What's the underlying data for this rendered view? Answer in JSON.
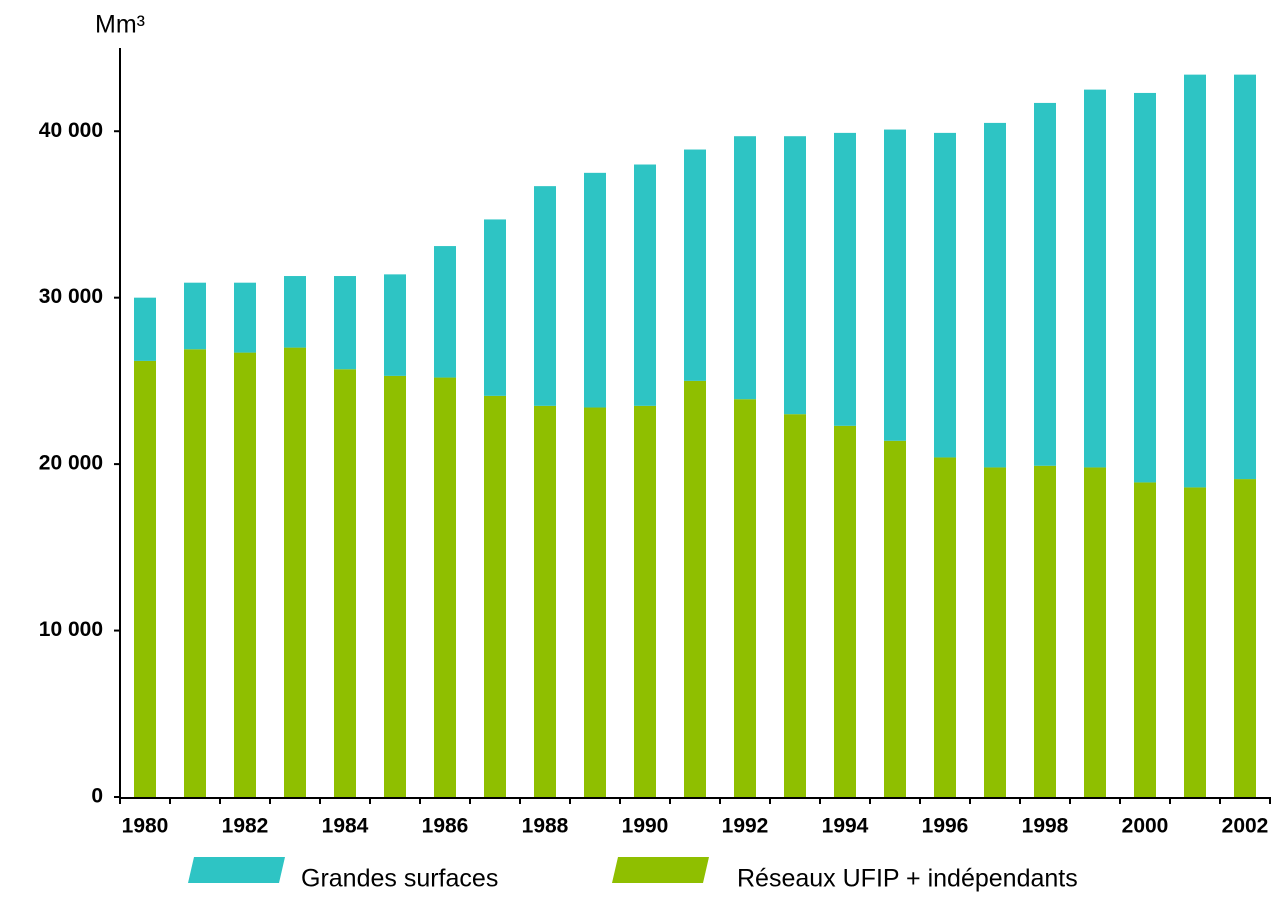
{
  "chart_data": {
    "type": "stacked_bar",
    "y_axis_label": "Mm³",
    "categories": [
      "1980",
      null,
      "1982",
      null,
      "1984",
      null,
      "1986",
      null,
      "1988",
      null,
      "1990",
      null,
      "1992",
      null,
      "1994",
      null,
      "1996",
      null,
      "1998",
      null,
      "2000",
      null,
      "2002"
    ],
    "series": [
      {
        "name": "Réseaux UFIP + indépendants",
        "color": "#8fbf00",
        "values": [
          26200,
          26900,
          26700,
          27000,
          25700,
          25300,
          25200,
          24100,
          23500,
          23400,
          23500,
          25000,
          23900,
          23000,
          22300,
          21400,
          20400,
          19800,
          19900,
          19800,
          18900,
          18600,
          19100
        ]
      },
      {
        "name": "Grandes surfaces",
        "color": "#2ec4c4",
        "values": [
          3800,
          4000,
          4200,
          4300,
          5600,
          6100,
          7900,
          10600,
          13200,
          14100,
          14500,
          13900,
          15800,
          16700,
          17600,
          18700,
          19500,
          20700,
          21800,
          22700,
          23400,
          24800,
          24300
        ]
      }
    ],
    "ylim": [
      0,
      45000
    ],
    "yticks": [
      0,
      {
        "value": 10000,
        "label": "10 000"
      },
      {
        "value": 20000,
        "label": "20 000"
      },
      {
        "value": 30000,
        "label": "30 000"
      },
      {
        "value": 40000,
        "label": "40 000"
      }
    ],
    "grid": false,
    "legend": "bottom"
  }
}
